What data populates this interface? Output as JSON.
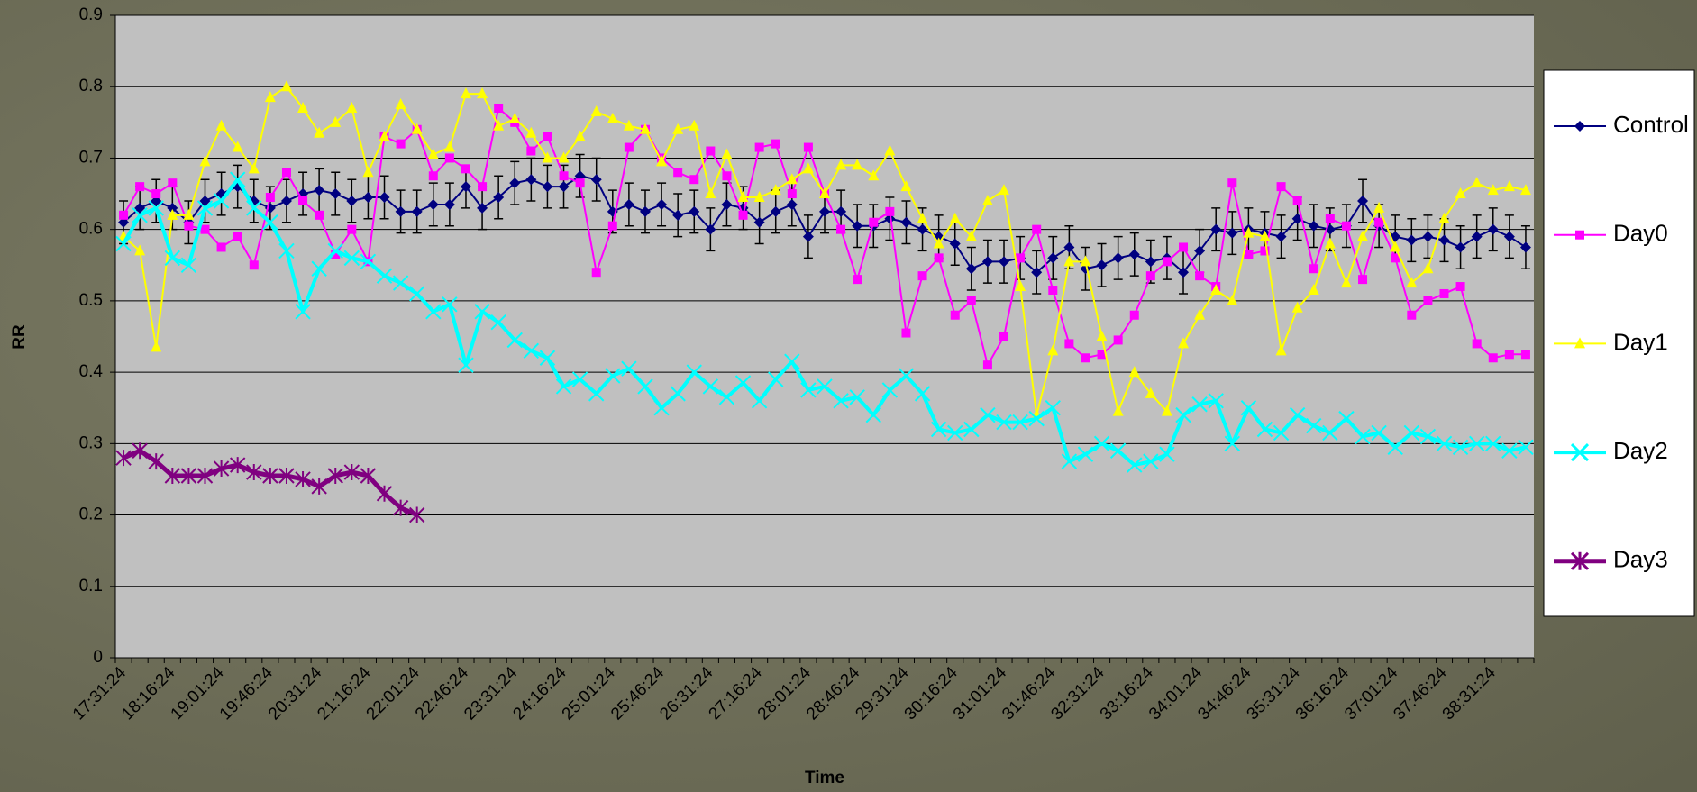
{
  "chart_data": {
    "type": "line",
    "x_label": "Time",
    "y_label": "RR",
    "categories": [
      "17:31:24",
      null,
      null,
      "18:16:24",
      null,
      null,
      "19:01:24",
      null,
      null,
      "19:46:24",
      null,
      null,
      "20:31:24",
      null,
      null,
      "21:16:24",
      null,
      null,
      "22:01:24",
      null,
      null,
      "22:46:24",
      null,
      null,
      "23:31:24",
      null,
      null,
      "24:16:24",
      null,
      null,
      "25:01:24",
      null,
      null,
      "25:46:24",
      null,
      null,
      "26:31:24",
      null,
      null,
      "27:16:24",
      null,
      null,
      "28:01:24",
      null,
      null,
      "28:46:24",
      null,
      null,
      "29:31:24",
      null,
      null,
      "30:16:24",
      null,
      null,
      "31:01:24",
      null,
      null,
      "31:46:24",
      null,
      null,
      "32:31:24",
      null,
      null,
      "33:16:24",
      null,
      null,
      "34:01:24",
      null,
      null,
      "34:46:24",
      null,
      null,
      "35:31:24",
      null,
      null,
      "36:16:24",
      null,
      null,
      "37:01:24",
      null,
      null,
      "37:46:24",
      null,
      null,
      "38:31:24",
      null,
      null
    ],
    "ylim": [
      0,
      0.9
    ],
    "yticks": [
      0,
      0.1,
      0.2,
      0.3,
      0.4,
      0.5,
      0.6,
      0.7,
      0.8,
      0.9
    ],
    "grid": true,
    "legend": "right",
    "series": [
      {
        "name": "Control",
        "color": "#000080",
        "marker": "diamond",
        "width": 2,
        "values": [
          0.61,
          0.63,
          0.64,
          0.63,
          0.61,
          0.64,
          0.65,
          0.66,
          0.64,
          0.63,
          0.64,
          0.65,
          0.655,
          0.65,
          0.64,
          0.645,
          0.645,
          0.625,
          0.625,
          0.635,
          0.635,
          0.66,
          0.63,
          0.645,
          0.665,
          0.67,
          0.66,
          0.66,
          0.675,
          0.67,
          0.625,
          0.635,
          0.625,
          0.635,
          0.62,
          0.625,
          0.6,
          0.635,
          0.63,
          0.61,
          0.625,
          0.635,
          0.59,
          0.625,
          0.625,
          0.605,
          0.605,
          0.615,
          0.61,
          0.6,
          0.59,
          0.58,
          0.545,
          0.555,
          0.555,
          0.56,
          0.54,
          0.56,
          0.575,
          0.545,
          0.55,
          0.56,
          0.565,
          0.555,
          0.56,
          0.54,
          0.57,
          0.6,
          0.595,
          0.6,
          0.595,
          0.59,
          0.615,
          0.605,
          0.6,
          0.605,
          0.64,
          0.605,
          0.59,
          0.585,
          0.59,
          0.585,
          0.575,
          0.59,
          0.6,
          0.59,
          0.575
        ],
        "errors": [
          0.03,
          0.03,
          0.03,
          0.03,
          0.03,
          0.03,
          0.03,
          0.03,
          0.03,
          0.03,
          0.03,
          0.03,
          0.03,
          0.03,
          0.03,
          0.03,
          0.03,
          0.03,
          0.03,
          0.03,
          0.03,
          0.03,
          0.03,
          0.03,
          0.03,
          0.03,
          0.03,
          0.03,
          0.03,
          0.03,
          0.03,
          0.03,
          0.03,
          0.03,
          0.03,
          0.03,
          0.03,
          0.03,
          0.03,
          0.03,
          0.03,
          0.03,
          0.03,
          0.03,
          0.03,
          0.03,
          0.03,
          0.03,
          0.03,
          0.03,
          0.03,
          0.03,
          0.03,
          0.03,
          0.03,
          0.03,
          0.03,
          0.03,
          0.03,
          0.03,
          0.03,
          0.03,
          0.03,
          0.03,
          0.03,
          0.03,
          0.03,
          0.03,
          0.03,
          0.03,
          0.03,
          0.03,
          0.03,
          0.03,
          0.03,
          0.03,
          0.03,
          0.03,
          0.03,
          0.03,
          0.03,
          0.03,
          0.03,
          0.03,
          0.03,
          0.03,
          0.03
        ]
      },
      {
        "name": "Day0",
        "color": "#ff00ff",
        "marker": "square",
        "width": 2,
        "values": [
          0.62,
          0.66,
          0.65,
          0.665,
          0.605,
          0.6,
          0.575,
          0.59,
          0.55,
          0.645,
          0.68,
          0.64,
          0.62,
          0.565,
          0.6,
          0.555,
          0.73,
          0.72,
          0.74,
          0.675,
          0.7,
          0.685,
          0.66,
          0.77,
          0.75,
          0.71,
          0.73,
          0.675,
          0.665,
          0.54,
          0.605,
          0.715,
          0.74,
          0.7,
          0.68,
          0.67,
          0.71,
          0.675,
          0.62,
          0.715,
          0.72,
          0.65,
          0.715,
          0.65,
          0.6,
          0.53,
          0.61,
          0.625,
          0.455,
          0.535,
          0.56,
          0.48,
          0.5,
          0.41,
          0.45,
          0.56,
          0.6,
          0.515,
          0.44,
          0.42,
          0.425,
          0.445,
          0.48,
          0.535,
          0.555,
          0.575,
          0.535,
          0.52,
          0.665,
          0.565,
          0.57,
          0.66,
          0.64,
          0.545,
          0.615,
          0.605,
          0.53,
          0.61,
          0.56,
          0.48,
          0.5,
          0.51,
          0.52,
          0.44,
          0.42,
          0.425,
          0.425
        ]
      },
      {
        "name": "Day1",
        "color": "#ffff00",
        "marker": "triangle",
        "width": 2,
        "values": [
          0.59,
          0.57,
          0.435,
          0.62,
          0.62,
          0.695,
          0.745,
          0.715,
          0.685,
          0.785,
          0.8,
          0.77,
          0.735,
          0.75,
          0.77,
          0.68,
          0.73,
          0.775,
          0.74,
          0.705,
          0.715,
          0.79,
          0.79,
          0.745,
          0.755,
          0.735,
          0.7,
          0.7,
          0.73,
          0.765,
          0.755,
          0.745,
          0.74,
          0.695,
          0.74,
          0.745,
          0.65,
          0.705,
          0.645,
          0.645,
          0.655,
          0.67,
          0.685,
          0.65,
          0.69,
          0.69,
          0.675,
          0.71,
          0.66,
          0.615,
          0.58,
          0.615,
          0.59,
          0.64,
          0.655,
          0.52,
          0.34,
          0.43,
          0.555,
          0.555,
          0.45,
          0.345,
          0.4,
          0.37,
          0.345,
          0.44,
          0.48,
          0.515,
          0.5,
          0.595,
          0.59,
          0.43,
          0.49,
          0.515,
          0.58,
          0.525,
          0.59,
          0.63,
          0.575,
          0.525,
          0.545,
          0.615,
          0.65,
          0.665,
          0.655,
          0.66,
          0.655
        ]
      },
      {
        "name": "Day2",
        "color": "#00ffff",
        "marker": "x",
        "width": 4,
        "values": [
          0.58,
          0.62,
          0.63,
          0.56,
          0.55,
          0.63,
          0.64,
          0.67,
          0.63,
          0.61,
          0.57,
          0.485,
          0.545,
          0.57,
          0.56,
          0.555,
          0.535,
          0.525,
          0.51,
          0.485,
          0.495,
          0.41,
          0.485,
          0.47,
          0.445,
          0.43,
          0.42,
          0.38,
          0.39,
          0.37,
          0.395,
          0.405,
          0.38,
          0.35,
          0.37,
          0.4,
          0.38,
          0.365,
          0.385,
          0.36,
          0.39,
          0.415,
          0.375,
          0.38,
          0.36,
          0.365,
          0.34,
          0.375,
          0.395,
          0.37,
          0.32,
          0.315,
          0.32,
          0.34,
          0.33,
          0.33,
          0.335,
          0.35,
          0.275,
          0.285,
          0.3,
          0.29,
          0.27,
          0.275,
          0.285,
          0.34,
          0.355,
          0.36,
          0.3,
          0.35,
          0.32,
          0.315,
          0.34,
          0.325,
          0.315,
          0.335,
          0.31,
          0.315,
          0.295,
          0.315,
          0.31,
          0.3,
          0.295,
          0.3,
          0.3,
          0.29,
          0.295
        ]
      },
      {
        "name": "Day3",
        "color": "#800080",
        "marker": "star",
        "width": 5,
        "values": [
          0.28,
          0.29,
          0.275,
          0.255,
          0.255,
          0.255,
          0.265,
          0.27,
          0.26,
          0.255,
          0.255,
          0.25,
          0.24,
          0.255,
          0.26,
          0.255,
          0.23,
          0.21,
          0.2,
          null,
          null,
          null,
          null,
          null,
          null,
          null,
          null,
          null,
          null,
          null,
          null,
          null,
          null,
          null,
          null,
          null,
          null,
          null,
          null,
          null,
          null,
          null,
          null,
          null,
          null,
          null,
          null,
          null,
          null,
          null,
          null,
          null,
          null,
          null,
          null,
          null,
          null,
          null,
          null,
          null,
          null,
          null,
          null,
          null,
          null,
          null,
          null,
          null,
          null,
          null,
          null,
          null,
          null,
          null,
          null,
          null,
          null,
          null,
          null,
          null,
          null,
          null,
          null,
          null,
          null,
          null,
          null
        ]
      }
    ]
  }
}
